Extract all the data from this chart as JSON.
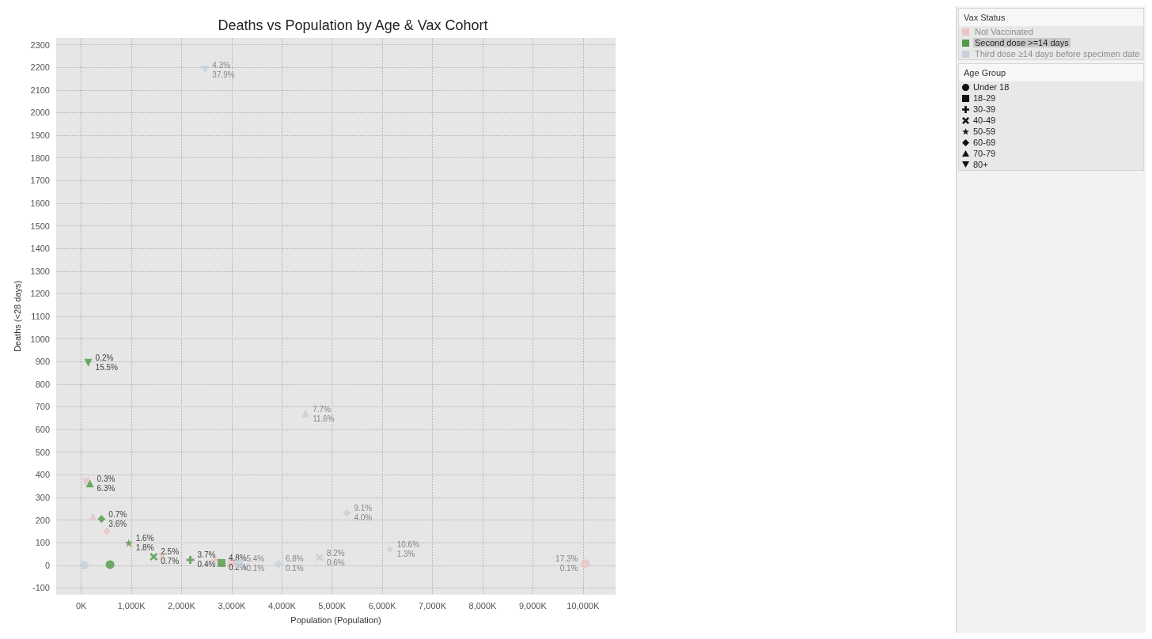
{
  "chart_data": [
    {
      "type": "scatter",
      "title": "Deaths vs Population by Age & Vax Cohort",
      "xlabel": "Population (Population)",
      "ylabel": "Deaths (<28 days)",
      "legend_title": "Vax Status",
      "legend": "right",
      "grid": true,
      "xlim": [
        -500,
        10650
      ],
      "xticks": [
        {
          "value": 0,
          "label": "0K"
        },
        {
          "value": 1000,
          "label": "1,000K"
        },
        {
          "value": 2000,
          "label": "2,000K"
        },
        {
          "value": 3000,
          "label": "3,000K"
        },
        {
          "value": 4000,
          "label": "4,000K"
        },
        {
          "value": 5000,
          "label": "5,000K"
        },
        {
          "value": 6000,
          "label": "6,000K"
        },
        {
          "value": 7000,
          "label": "7,000K"
        },
        {
          "value": 8000,
          "label": "8,000K"
        },
        {
          "value": 9000,
          "label": "9,000K"
        },
        {
          "value": 10000,
          "label": "10,000K"
        }
      ],
      "ylim": [
        -130,
        2330
      ],
      "yticks": [
        -100,
        0,
        100,
        200,
        300,
        400,
        500,
        600,
        700,
        800,
        900,
        1000,
        1100,
        1200,
        1300,
        1400,
        1500,
        1600,
        1700,
        1800,
        1900,
        2000,
        2100,
        2200,
        2300
      ],
      "series": [
        {
          "name": "Not Vaccinated",
          "color": "#e8c4c4",
          "marker": [
            "circle",
            "square",
            "plus",
            "x",
            "star",
            "diamond",
            "triangle",
            "triangle-down"
          ],
          "x": [
            10050,
            3000,
            2670,
            1615,
            990,
            510,
            233,
            93
          ],
          "values": [
            7,
            10,
            24,
            41,
            96,
            150,
            215,
            369
          ],
          "value_labels": [
            "17.3%\n0.1%",
            null,
            null,
            null,
            null,
            null,
            null,
            null
          ]
        },
        {
          "name": "Second dose >=14 days",
          "color": "#4e9a47",
          "marker": [
            "circle",
            "square",
            "plus",
            "x",
            "star",
            "diamond",
            "triangle",
            "triangle-down"
          ],
          "x": [
            575,
            2795,
            2174,
            1444,
            947,
            404,
            171,
            140
          ],
          "values": [
            3,
            10,
            24,
            38,
            99,
            205,
            362,
            895
          ],
          "value_labels": [
            null,
            "4.8%\n0.2%",
            "3.7%\n0.4%",
            "2.5%\n0.7%",
            "1.6%\n1.8%",
            "0.7%\n3.6%",
            "0.3%\n6.3%",
            "0.2%\n15.5%"
          ]
        },
        {
          "name": "Third dose ≥14 days before specimen date",
          "color": "#c5d0db",
          "marker": [
            "circle",
            "square",
            "plus",
            "x",
            "star",
            "diamond",
            "triangle",
            "triangle-down"
          ],
          "x": [
            62,
            3150,
            3930,
            4750,
            6150,
            5295,
            4470,
            2470
          ],
          "values": [
            0,
            7,
            7,
            34,
            72,
            232,
            670,
            2190
          ],
          "value_labels": [
            null,
            "5.4%\n0.1%",
            "6.8%\n0.1%",
            "8.2%\n0.6%",
            "10.6%\n1.3%",
            "9.1%\n4.0%",
            "7.7%\n11.6%",
            "4.3%\n37.9%"
          ]
        }
      ]
    },
    {
      "type": "other",
      "title": "Age Group",
      "categories": [
        "Under 18",
        "18-29",
        "30-39",
        "40-49",
        "50-59",
        "60-69",
        "70-79",
        "80+"
      ]
    }
  ]
}
